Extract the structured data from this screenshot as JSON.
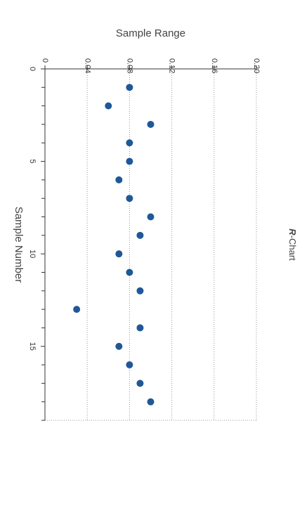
{
  "chart_data": {
    "type": "scatter",
    "title_symbol": "R",
    "title_suffix": "-Chart",
    "xlabel": "Sample Number",
    "ylabel": "Sample Range",
    "xlim": [
      0,
      19
    ],
    "ylim": [
      0,
      0.2
    ],
    "x_ticks": [
      "0",
      "5",
      "10",
      "15"
    ],
    "x_tick_values": [
      0,
      5,
      10,
      15
    ],
    "y_ticks": [
      "0",
      "0.04",
      "0.08",
      "0.12",
      "0.16",
      "0.20"
    ],
    "y_tick_values": [
      0,
      0.04,
      0.08,
      0.12,
      0.16,
      0.2
    ],
    "grid": "y-dotted",
    "series": [
      {
        "color": "#1f5897",
        "x": [
          1,
          2,
          3,
          4,
          5,
          6,
          7,
          8,
          9,
          10,
          11,
          12,
          13,
          14,
          15,
          16,
          17,
          18
        ],
        "y": [
          0.08,
          0.06,
          0.1,
          0.08,
          0.08,
          0.07,
          0.08,
          0.1,
          0.09,
          0.07,
          0.08,
          0.09,
          0.03,
          0.09,
          0.07,
          0.08,
          0.09,
          0.1
        ]
      }
    ]
  }
}
